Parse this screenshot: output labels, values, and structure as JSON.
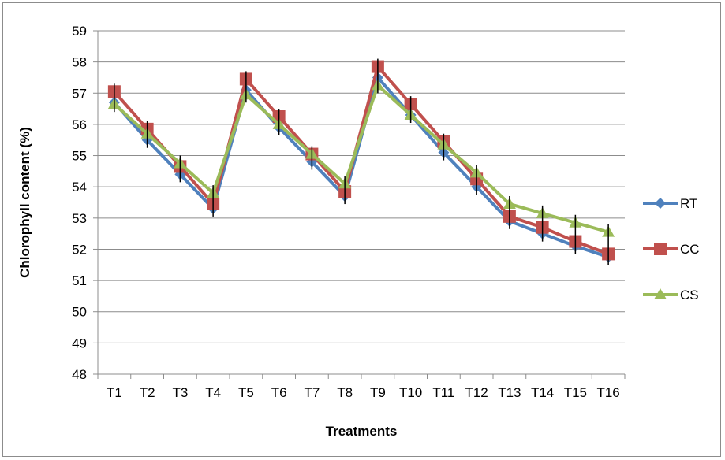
{
  "chart_data": {
    "type": "line",
    "title": "",
    "xlabel": "Treatments",
    "ylabel": "Chlorophyll content (%)",
    "ylim": [
      48,
      59
    ],
    "yticks": [
      48,
      49,
      50,
      51,
      52,
      53,
      54,
      55,
      56,
      57,
      58,
      59
    ],
    "grid": true,
    "legend_position": "right",
    "categories": [
      "T1",
      "T2",
      "T3",
      "T4",
      "T5",
      "T6",
      "T7",
      "T8",
      "T9",
      "T10",
      "T11",
      "T12",
      "T13",
      "T14",
      "T15",
      "T16"
    ],
    "series": [
      {
        "name": "RT",
        "color": "#4f81bd",
        "marker": "diamond",
        "values": [
          56.7,
          55.5,
          54.4,
          53.3,
          57.1,
          55.9,
          54.8,
          53.7,
          57.5,
          56.3,
          55.1,
          54.0,
          52.9,
          52.5,
          52.1,
          51.75
        ]
      },
      {
        "name": "CC",
        "color": "#c0504d",
        "marker": "square",
        "values": [
          57.05,
          55.85,
          54.65,
          53.45,
          57.45,
          56.25,
          55.05,
          53.85,
          57.85,
          56.65,
          55.45,
          54.25,
          53.05,
          52.7,
          52.25,
          51.85
        ]
      },
      {
        "name": "CS",
        "color": "#9bbb59",
        "marker": "triangle",
        "values": [
          56.65,
          55.7,
          54.75,
          53.8,
          56.95,
          56.0,
          55.05,
          54.1,
          57.25,
          56.3,
          55.35,
          54.45,
          53.45,
          53.15,
          52.85,
          52.55
        ]
      }
    ],
    "error_bars": true
  }
}
